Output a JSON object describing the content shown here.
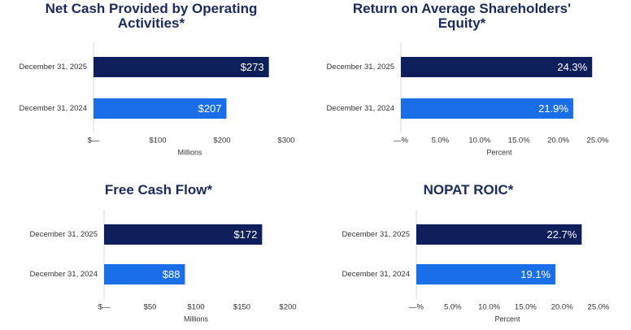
{
  "chart_data": [
    {
      "type": "bar",
      "orientation": "horizontal",
      "title": "Net Cash Provided by Operating Activities*",
      "categories": [
        "December 31, 2025",
        "December 31, 2024"
      ],
      "values": [
        273,
        207
      ],
      "value_labels": [
        "$273",
        "$207"
      ],
      "colors": [
        "#0f1f5c",
        "#1a6fe8"
      ],
      "xlim": [
        0,
        300
      ],
      "xticks": [
        {
          "value": 0,
          "label": "$—"
        },
        {
          "value": 100,
          "label": "$100"
        },
        {
          "value": 200,
          "label": "$200"
        },
        {
          "value": 300,
          "label": "$300"
        }
      ],
      "xlabel": "Millions"
    },
    {
      "type": "bar",
      "orientation": "horizontal",
      "title": "Return on Average Shareholders' Equity*",
      "categories": [
        "December 31, 2025",
        "December 31, 2024"
      ],
      "values": [
        24.3,
        21.9
      ],
      "value_labels": [
        "24.3%",
        "21.9%"
      ],
      "colors": [
        "#0f1f5c",
        "#1a6fe8"
      ],
      "xlim": [
        0,
        25
      ],
      "xticks": [
        {
          "value": 0,
          "label": "—%"
        },
        {
          "value": 5,
          "label": "5.0%"
        },
        {
          "value": 10,
          "label": "10.0%"
        },
        {
          "value": 15,
          "label": "15.0%"
        },
        {
          "value": 20,
          "label": "20.0%"
        },
        {
          "value": 25,
          "label": "25.0%"
        }
      ],
      "xlabel": "Percent"
    },
    {
      "type": "bar",
      "orientation": "horizontal",
      "title": "Free Cash Flow*",
      "categories": [
        "December 31, 2025",
        "December 31, 2024"
      ],
      "values": [
        172,
        88
      ],
      "value_labels": [
        "$172",
        "$88"
      ],
      "colors": [
        "#0f1f5c",
        "#1a6fe8"
      ],
      "xlim": [
        0,
        200
      ],
      "xticks": [
        {
          "value": 0,
          "label": "$—"
        },
        {
          "value": 50,
          "label": "$50"
        },
        {
          "value": 100,
          "label": "$100"
        },
        {
          "value": 150,
          "label": "$150"
        },
        {
          "value": 200,
          "label": "$200"
        }
      ],
      "xlabel": "Millions"
    },
    {
      "type": "bar",
      "orientation": "horizontal",
      "title": "NOPAT ROIC*",
      "categories": [
        "December 31, 2025",
        "December 31, 2024"
      ],
      "values": [
        22.7,
        19.1
      ],
      "value_labels": [
        "22.7%",
        "19.1%"
      ],
      "colors": [
        "#0f1f5c",
        "#1a6fe8"
      ],
      "xlim": [
        0,
        25
      ],
      "xticks": [
        {
          "value": 0,
          "label": "—%"
        },
        {
          "value": 5,
          "label": "5.0%"
        },
        {
          "value": 10,
          "label": "10.0%"
        },
        {
          "value": 15,
          "label": "15.0%"
        },
        {
          "value": 20,
          "label": "20.0%"
        },
        {
          "value": 25,
          "label": "25.0%"
        }
      ],
      "xlabel": "Percent"
    }
  ]
}
